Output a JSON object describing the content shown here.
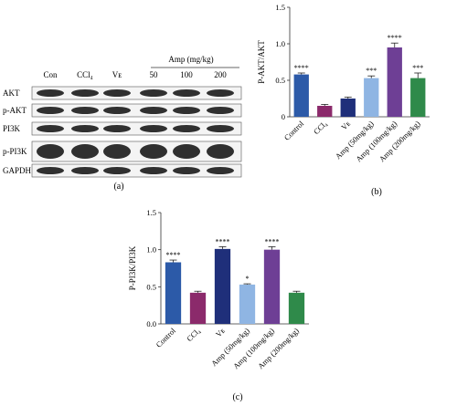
{
  "panel_a": {
    "caption": "(a)",
    "group_header": "Amp (mg/kg)",
    "lanes": [
      "Con",
      "CCl₄",
      "Vᴇ",
      "50",
      "100",
      "200"
    ],
    "rows": [
      "AKT",
      "p-AKT",
      "PI3K",
      "p-PI3K",
      "GAPDH"
    ]
  },
  "chart_data": [
    {
      "type": "bar",
      "panel": "(b)",
      "title": "",
      "xlabel": "",
      "ylabel": "P-AKT/AKT",
      "ylim": [
        0,
        1.5
      ],
      "yticks": [
        0,
        0.5,
        1.0,
        1.5
      ],
      "categories": [
        "Control",
        "CCl₄",
        "Vᴇ",
        "Amp (50mg/kg)",
        "Amp (100mg/kg)",
        "Amp (200mg/kg)"
      ],
      "values": [
        0.58,
        0.15,
        0.25,
        0.53,
        0.95,
        0.53
      ],
      "errors": [
        0.02,
        0.02,
        0.02,
        0.03,
        0.06,
        0.07
      ],
      "significance": [
        "****",
        "",
        "",
        "***",
        "****",
        "***"
      ],
      "colors": [
        "#2c5aa8",
        "#8b2a6b",
        "#1f2f7a",
        "#8fb5e3",
        "#6e3f95",
        "#2f8a4a"
      ]
    },
    {
      "type": "bar",
      "panel": "(c)",
      "title": "",
      "xlabel": "",
      "ylabel": "P-PI3K/PI3K",
      "ylim": [
        0,
        1.5
      ],
      "yticks": [
        0.0,
        0.5,
        1.0,
        1.5
      ],
      "categories": [
        "Control",
        "CCl₄",
        "Vᴇ",
        "Amp (50mg/kg)",
        "Amp (100mg/kg)",
        "Amp (200mg/kg)"
      ],
      "values": [
        0.83,
        0.42,
        1.01,
        0.53,
        1.0,
        0.42
      ],
      "errors": [
        0.03,
        0.02,
        0.03,
        0.01,
        0.04,
        0.02
      ],
      "significance": [
        "****",
        "",
        "****",
        "*",
        "****",
        ""
      ],
      "colors": [
        "#2c5aa8",
        "#8b2a6b",
        "#1f2f7a",
        "#8fb5e3",
        "#6e3f95",
        "#2f8a4a"
      ]
    }
  ]
}
